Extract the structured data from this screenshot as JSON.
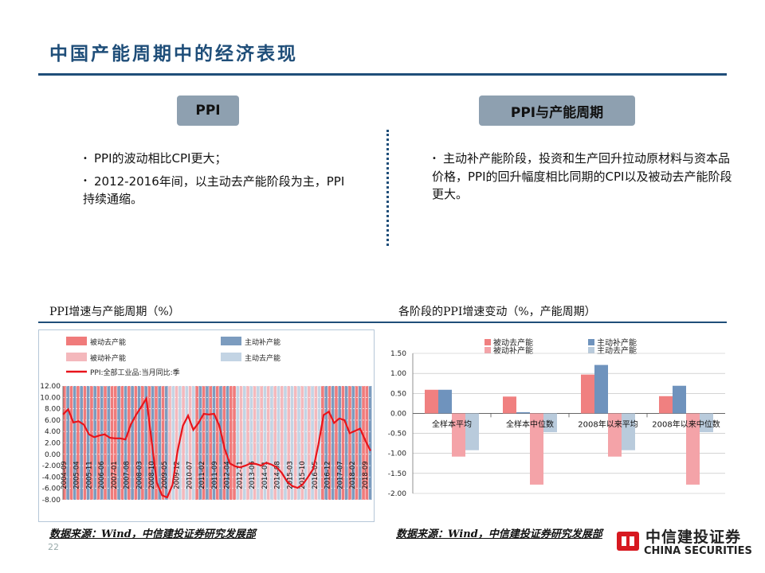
{
  "page": {
    "title": "中国产能周期中的经济表现",
    "page_number": "22"
  },
  "left_panel": {
    "pill": "PPI",
    "bullets": [
      "PPI的波动相比CPI更大；",
      "2012-2016年间，以主动去产能阶段为主，PPI持续通缩。"
    ]
  },
  "right_panel": {
    "pill": "PPI与产能周期",
    "bullets": [
      "主动补产能阶段，投资和生产回升拉动原材料与资本品价格，PPI的回升幅度相比同期的CPI以及被动去产能阶段更大。"
    ]
  },
  "sources": {
    "left": "数据来源：Wind，中信建投证券研究发展部",
    "right": "数据来源：Wind，中信建投证券研究发展部"
  },
  "logo": {
    "name_cn": "中信建投证券",
    "name_en": "CHINA SECURITIES"
  },
  "colors": {
    "accent": "#1f4e79",
    "passive_destock": "#f07b7b",
    "active_restock": "#7c9cbf",
    "passive_restock": "#f4b8bc",
    "active_destock": "#c3d4e4",
    "ppi_line": "#e8141b",
    "passive_destock_bar": "#f08080",
    "active_restock_bar": "#6f93bd",
    "passive_restock_bar": "#f4a3a8",
    "active_destock_bar": "#b9cbdc"
  },
  "chart_data": [
    {
      "type": "line",
      "title": "PPI增速与产能周期（%）",
      "legend": [
        {
          "name": "被动去产能",
          "key": "passive_destock"
        },
        {
          "name": "主动补产能",
          "key": "active_restock"
        },
        {
          "name": "被动补产能",
          "key": "passive_restock"
        },
        {
          "name": "主动去产能",
          "key": "active_destock"
        },
        {
          "name": "PPI:全部工业品:当月同比:季",
          "key": "ppi_line"
        }
      ],
      "ylim": [
        -8,
        12
      ],
      "yticks": [
        "12.00",
        "10.00",
        "8.00",
        "6.00",
        "4.00",
        "2.00",
        "0.00",
        "-2.00",
        "-4.00",
        "-6.00",
        "-8.00"
      ],
      "x_labels": [
        "2004-09",
        "2005-04",
        "2005-11",
        "2006-06",
        "2007-01",
        "2007-08",
        "2008-03",
        "2008-10",
        "2009-05",
        "2009-12",
        "2010-07",
        "2011-02",
        "2011-09",
        "2012-04",
        "2012-11",
        "2013-06",
        "2014-01",
        "2014-08",
        "2015-03",
        "2015-10",
        "2016-05",
        "2016-12",
        "2017-07",
        "2018-02",
        "2018-09"
      ],
      "stripe_phases": [
        "passive_destock",
        "active_restock",
        "passive_destock",
        "active_restock",
        "passive_destock",
        "active_restock",
        "passive_destock",
        "active_restock",
        "passive_destock",
        "active_restock",
        "passive_destock",
        "active_restock",
        "passive_destock",
        "active_restock",
        "passive_destock",
        "passive_destock",
        "active_restock",
        "passive_destock",
        "active_restock",
        "passive_destock",
        "active_restock",
        "passive_destock",
        "active_restock",
        "passive_destock",
        "active_restock",
        "passive_destock",
        "active_restock",
        "passive_destock",
        "active_restock",
        "passive_destock",
        "active_restock",
        "passive_restock",
        "active_destock",
        "passive_restock",
        "active_destock",
        "passive_restock",
        "active_destock",
        "passive_restock",
        "active_destock",
        "passive_destock",
        "active_restock",
        "passive_destock",
        "active_restock",
        "passive_destock",
        "active_restock",
        "passive_destock",
        "active_restock",
        "passive_destock",
        "active_restock",
        "passive_destock",
        "passive_destock",
        "active_destock",
        "passive_restock",
        "active_destock",
        "passive_restock",
        "active_destock",
        "passive_restock",
        "active_destock",
        "passive_restock",
        "active_destock",
        "passive_restock",
        "active_destock",
        "passive_restock",
        "active_destock",
        "passive_restock",
        "active_destock",
        "passive_restock",
        "active_destock",
        "passive_restock",
        "active_destock",
        "passive_restock",
        "active_destock",
        "passive_restock",
        "active_destock",
        "passive_restock",
        "active_destock",
        "passive_destock",
        "active_restock",
        "passive_destock",
        "active_restock",
        "passive_destock",
        "active_restock",
        "passive_destock",
        "active_restock",
        "passive_destock",
        "active_restock",
        "passive_destock",
        "active_restock",
        "passive_destock",
        "passive_destock",
        "active_restock"
      ],
      "series": [
        {
          "name": "PPI:全部工业品:当月同比:季",
          "values": [
            7.0,
            7.9,
            5.6,
            5.8,
            5.2,
            3.5,
            3.0,
            3.3,
            3.5,
            2.9,
            2.8,
            2.8,
            2.6,
            5.2,
            6.9,
            8.3,
            9.8,
            2.4,
            -5.0,
            -7.2,
            -7.6,
            -5.4,
            0.6,
            5.0,
            6.8,
            4.3,
            5.5,
            7.1,
            7.0,
            7.1,
            5.0,
            1.0,
            -1.6,
            -2.1,
            -2.3,
            -2.0,
            -1.6,
            -1.7,
            -2.0,
            -1.5,
            -1.8,
            -2.3,
            -3.3,
            -4.8,
            -5.6,
            -5.9,
            -5.3,
            -4.0,
            -2.6,
            1.7,
            6.9,
            7.5,
            5.5,
            6.3,
            6.0,
            3.7,
            4.1,
            4.5,
            2.4,
            0.6
          ]
        }
      ]
    },
    {
      "type": "bar",
      "title": "各阶段的PPI增速变动（%，产能周期）",
      "categories": [
        "全样本平均",
        "全样本中位数",
        "2008年以来平均",
        "2008年以来中位数"
      ],
      "ylim": [
        -2.0,
        1.5
      ],
      "yticks": [
        "1.50",
        "1.00",
        "0.50",
        "0.00",
        "-0.50",
        "-1.00",
        "-1.50",
        "-2.00"
      ],
      "series": [
        {
          "name": "被动去产能",
          "key": "passive_destock_bar",
          "values": [
            0.59,
            0.42,
            0.97,
            0.43
          ]
        },
        {
          "name": "主动补产能",
          "key": "active_restock_bar",
          "values": [
            0.59,
            0.03,
            1.21,
            0.69
          ]
        },
        {
          "name": "被动补产能",
          "key": "passive_restock_bar",
          "values": [
            -1.08,
            -1.78,
            -1.08,
            -1.78
          ]
        },
        {
          "name": "主动去产能",
          "key": "active_destock_bar",
          "values": [
            -0.92,
            -0.47,
            -0.92,
            -0.47
          ]
        }
      ]
    }
  ]
}
